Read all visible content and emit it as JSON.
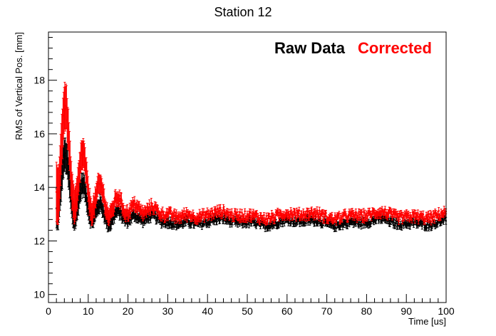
{
  "chart_data": {
    "type": "scatter",
    "title": "Station 12",
    "xlabel": "Time [us]",
    "ylabel": "RMS of Vertical Pos. [mm]",
    "xlim": [
      0,
      100
    ],
    "ylim": [
      9.7,
      19.8
    ],
    "x_ticks": [
      0,
      10,
      20,
      30,
      40,
      50,
      60,
      70,
      80,
      90,
      100
    ],
    "y_ticks": [
      10,
      12,
      14,
      16,
      18
    ],
    "grid": false,
    "legend_position": "top-right",
    "series": [
      {
        "name": "Raw Data",
        "color": "#000000",
        "error_bars": true,
        "x_start": 2.0,
        "x_step": 0.15,
        "x_end": 100.0,
        "asymptote": 12.7,
        "early_peak": 16.0,
        "modulation_period_us": 4.37
      },
      {
        "name": "Corrected",
        "color": "#ff0000",
        "error_bars": true,
        "x_start": 2.0,
        "x_step": 0.15,
        "x_end": 100.0,
        "asymptote": 12.95,
        "early_peak": 18.4,
        "modulation_period_us": 4.37
      }
    ]
  }
}
